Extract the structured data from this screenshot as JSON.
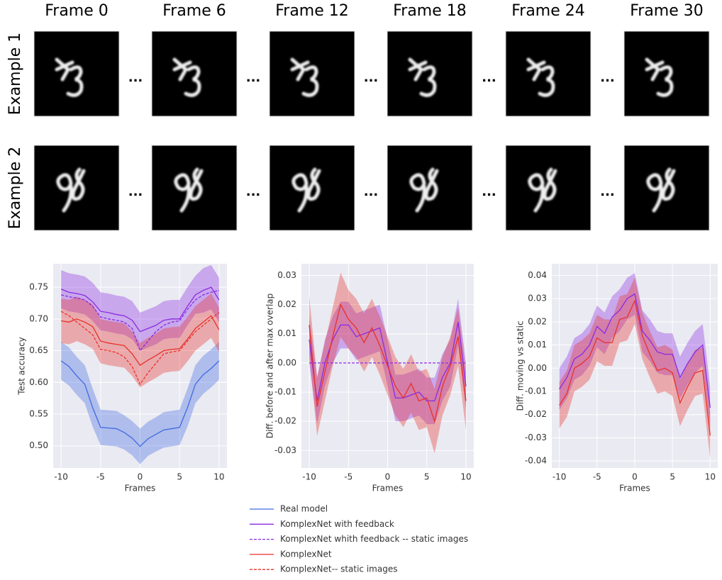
{
  "image_grid": {
    "column_titles": [
      "Frame 0",
      "Frame 6",
      "Frame 12",
      "Frame 18",
      "Frame 24",
      "Frame 30"
    ],
    "row_labels": [
      "Example 1",
      "Example 2"
    ],
    "separator": "..."
  },
  "chart_data": [
    {
      "type": "line",
      "ylabel": "Test accuracy",
      "xlabel": "Frames",
      "grid": true,
      "xlim": [
        -11,
        11
      ],
      "xticks": [
        -10,
        -5,
        0,
        5,
        10
      ],
      "ylim": [
        0.465,
        0.787
      ],
      "yticks": [
        {
          "value": 0.5,
          "label": "0.50"
        },
        0.55,
        {
          "value": 0.6,
          "label": "0.60"
        },
        0.65,
        {
          "value": 0.7,
          "label": "0.70"
        },
        0.75
      ],
      "x": [
        -10,
        -9,
        -8,
        -7,
        -6,
        -5,
        -4,
        -3,
        -2,
        -1,
        0,
        1,
        2,
        3,
        4,
        5,
        6,
        7,
        8,
        9,
        10
      ],
      "series": [
        {
          "name": "Real model",
          "color": "#4169e1",
          "linestyle": "solid",
          "values": [
            0.634,
            0.625,
            0.61,
            0.597,
            0.56,
            0.529,
            0.528,
            0.527,
            0.521,
            0.512,
            0.499,
            0.511,
            0.518,
            0.525,
            0.527,
            0.529,
            0.56,
            0.597,
            0.612,
            0.622,
            0.634
          ],
          "error": [
            0.03,
            0.03,
            0.03,
            0.03,
            0.03,
            0.028,
            0.028,
            0.028,
            0.027,
            0.027,
            0.028,
            0.027,
            0.027,
            0.028,
            0.028,
            0.028,
            0.03,
            0.03,
            0.03,
            0.03,
            0.03
          ]
        },
        {
          "name": "KomplexNet with feedback",
          "color": "#8a2be2",
          "linestyle": "solid",
          "values": [
            0.747,
            0.742,
            0.74,
            0.737,
            0.727,
            0.712,
            0.71,
            0.707,
            0.705,
            0.698,
            0.68,
            0.685,
            0.69,
            0.698,
            0.7,
            0.7,
            0.72,
            0.738,
            0.745,
            0.75,
            0.73
          ],
          "error": [
            0.03,
            0.03,
            0.03,
            0.03,
            0.03,
            0.03,
            0.03,
            0.03,
            0.03,
            0.03,
            0.03,
            0.03,
            0.03,
            0.03,
            0.03,
            0.03,
            0.03,
            0.03,
            0.035,
            0.035,
            0.035
          ]
        },
        {
          "name": "KomplexNet whith feedback -- static images",
          "color": "#8a2be2",
          "linestyle": "dashed",
          "values": [
            0.738,
            0.735,
            0.733,
            0.73,
            0.72,
            0.703,
            0.7,
            0.698,
            0.695,
            0.685,
            0.65,
            0.665,
            0.68,
            0.69,
            0.695,
            0.697,
            0.715,
            0.73,
            0.738,
            0.742,
            0.745
          ]
        },
        {
          "name": "KomplexNet",
          "color": "#e8312a",
          "linestyle": "solid",
          "values": [
            0.697,
            0.695,
            0.7,
            0.695,
            0.688,
            0.665,
            0.662,
            0.66,
            0.658,
            0.645,
            0.627,
            0.635,
            0.642,
            0.65,
            0.652,
            0.653,
            0.668,
            0.685,
            0.695,
            0.705,
            0.683
          ],
          "error": [
            0.035,
            0.035,
            0.035,
            0.035,
            0.035,
            0.035,
            0.035,
            0.035,
            0.035,
            0.035,
            0.035,
            0.035,
            0.035,
            0.035,
            0.035,
            0.035,
            0.035,
            0.035,
            0.035,
            0.035,
            0.035
          ]
        },
        {
          "name": "KomplexNet-- static images",
          "color": "#e8312a",
          "linestyle": "dashed",
          "values": [
            0.712,
            0.705,
            0.695,
            0.685,
            0.675,
            0.652,
            0.65,
            0.647,
            0.64,
            0.625,
            0.597,
            0.615,
            0.63,
            0.645,
            0.648,
            0.65,
            0.665,
            0.68,
            0.69,
            0.7,
            0.71
          ]
        }
      ]
    },
    {
      "type": "line",
      "ylabel": "Diff. before and after max overlap",
      "xlabel": "Frames",
      "grid": true,
      "xlim": [
        -11,
        11
      ],
      "xticks": [
        -10,
        -5,
        0,
        5,
        10
      ],
      "ylim": [
        -0.036,
        0.034
      ],
      "yticks": [
        -0.03,
        -0.02,
        -0.01,
        {
          "value": 0,
          "label": "0.00"
        },
        0.01,
        0.02,
        0.03
      ],
      "x": [
        -10,
        -9,
        -8,
        -7,
        -6,
        -5,
        -4,
        -3,
        -2,
        -1,
        0,
        1,
        2,
        3,
        4,
        5,
        6,
        7,
        8,
        9,
        10
      ],
      "series": [
        {
          "name": "KomplexNet with feedback",
          "color": "#8a2be2",
          "linestyle": "solid",
          "values": [
            0.008,
            -0.013,
            0,
            0.008,
            0.013,
            0.013,
            0.009,
            0.01,
            0.011,
            0.012,
            0,
            -0.012,
            -0.012,
            -0.011,
            -0.01,
            -0.013,
            -0.013,
            -0.005,
            0,
            0.014,
            -0.008
          ],
          "error": [
            0.008,
            0.008,
            0.008,
            0.008,
            0.008,
            0.008,
            0.008,
            0.008,
            0.008,
            0.008,
            0.008,
            0.008,
            0.008,
            0.008,
            0.008,
            0.008,
            0.008,
            0.008,
            0.008,
            0.008,
            0.008
          ]
        },
        {
          "name": "KomplexNet whith feedback -- static images",
          "color": "#8a2be2",
          "linestyle": "dashed",
          "values": [
            0,
            0,
            0,
            0,
            0,
            0,
            0,
            0,
            0,
            0,
            0,
            0,
            0,
            0,
            0,
            0,
            0,
            0,
            0,
            0,
            0
          ]
        },
        {
          "name": "KomplexNet",
          "color": "#e8312a",
          "linestyle": "solid",
          "values": [
            0.013,
            -0.015,
            -0.003,
            0.009,
            0.02,
            0.015,
            0.012,
            0.007,
            0.012,
            0.006,
            -0.001,
            -0.008,
            -0.012,
            -0.007,
            -0.013,
            -0.012,
            -0.02,
            -0.008,
            -0.001,
            0.009,
            -0.013
          ],
          "error": [
            0.01,
            0.01,
            0.01,
            0.01,
            0.011,
            0.01,
            0.01,
            0.01,
            0.01,
            0.01,
            0.01,
            0.01,
            0.01,
            0.01,
            0.01,
            0.01,
            0.011,
            0.01,
            0.01,
            0.01,
            0.01
          ]
        }
      ]
    },
    {
      "type": "line",
      "ylabel": "Diff. moving vs static",
      "xlabel": "Frames",
      "grid": true,
      "xlim": [
        -11,
        11
      ],
      "xticks": [
        -10,
        -5,
        0,
        5,
        10
      ],
      "ylim": [
        -0.043,
        0.045
      ],
      "yticks": [
        -0.04,
        -0.03,
        -0.02,
        -0.01,
        {
          "value": 0,
          "label": "0.00"
        },
        0.01,
        0.02,
        0.03,
        0.04
      ],
      "x": [
        -10,
        -9,
        -8,
        -7,
        -6,
        -5,
        -4,
        -3,
        -2,
        -1,
        0,
        1,
        2,
        3,
        4,
        5,
        6,
        7,
        8,
        9,
        10
      ],
      "series": [
        {
          "name": "KomplexNet with feedback",
          "color": "#8a2be2",
          "linestyle": "solid",
          "values": [
            -0.009,
            -0.004,
            0.004,
            0.006,
            0.01,
            0.018,
            0.015,
            0.022,
            0.025,
            0.03,
            0.032,
            0.016,
            0.012,
            0.007,
            0.006,
            0.006,
            -0.004,
            0.002,
            0.007,
            0.01,
            -0.017
          ],
          "error": [
            0.009,
            0.009,
            0.009,
            0.009,
            0.009,
            0.009,
            0.009,
            0.009,
            0.009,
            0.009,
            0.009,
            0.009,
            0.009,
            0.009,
            0.009,
            0.009,
            0.009,
            0.009,
            0.009,
            0.009,
            0.009
          ]
        },
        {
          "name": "KomplexNet",
          "color": "#e8312a",
          "linestyle": "solid",
          "values": [
            -0.016,
            -0.011,
            0,
            0.002,
            0.005,
            0.013,
            0.011,
            0.011,
            0.021,
            0.022,
            0.029,
            0.014,
            0.006,
            -0.001,
            0,
            -0.002,
            -0.015,
            -0.008,
            -0.002,
            -0.001,
            -0.029
          ],
          "error": [
            0.01,
            0.01,
            0.01,
            0.01,
            0.01,
            0.01,
            0.01,
            0.01,
            0.01,
            0.01,
            0.01,
            0.01,
            0.01,
            0.01,
            0.01,
            0.01,
            0.01,
            0.01,
            0.01,
            0.01,
            0.01
          ]
        }
      ]
    }
  ]
}
